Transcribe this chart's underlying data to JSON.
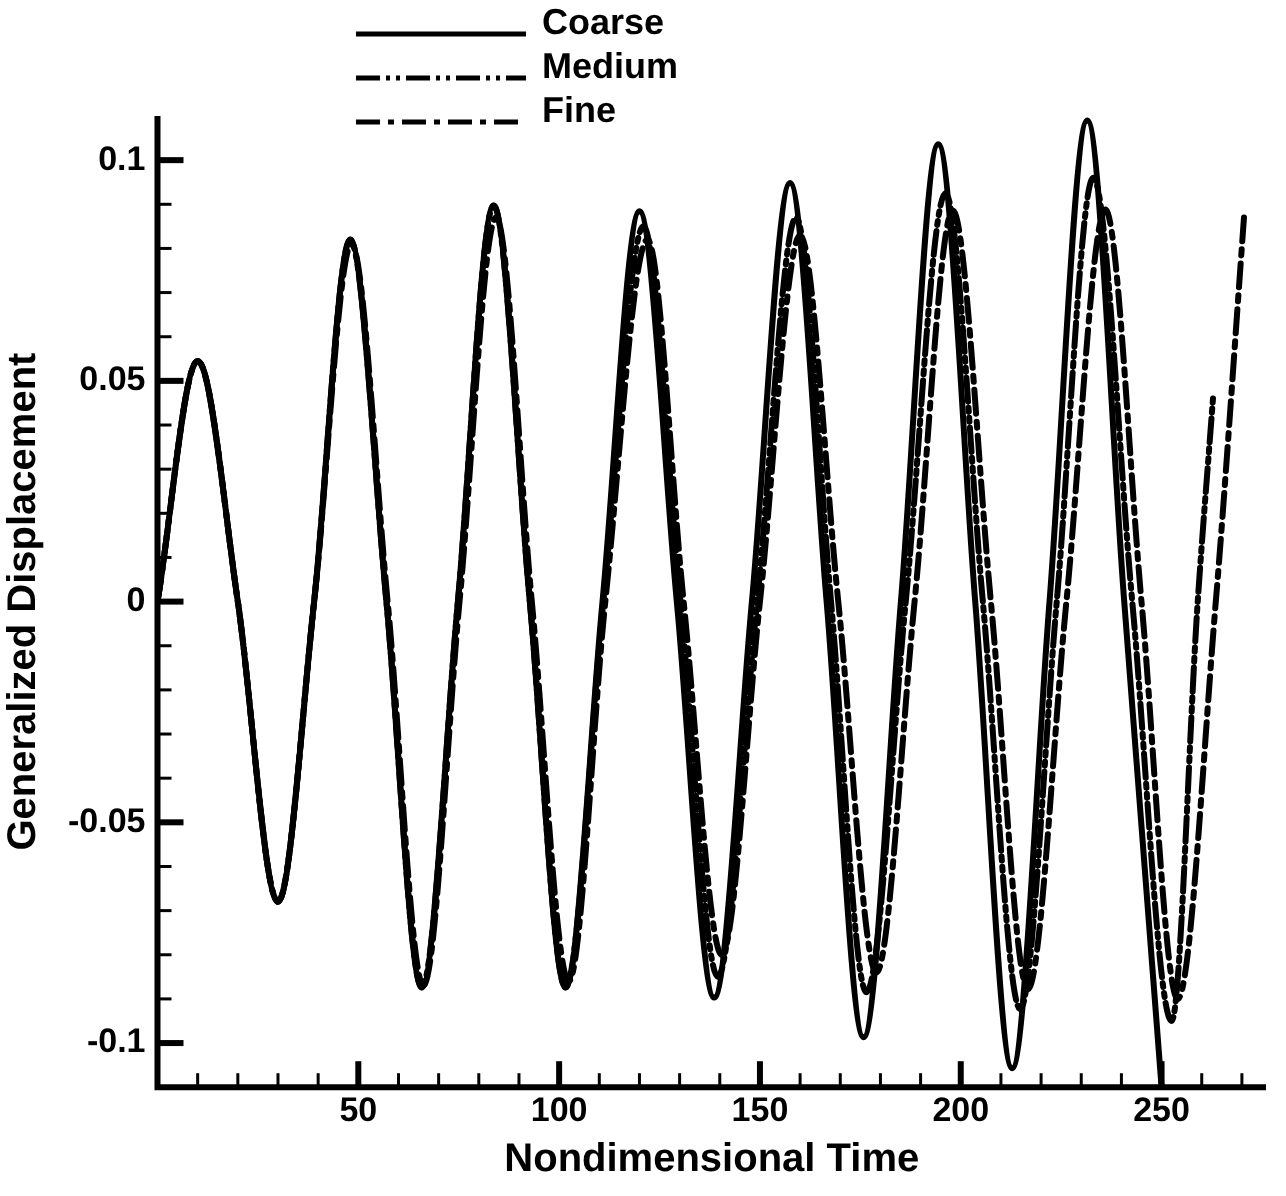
{
  "chart_data": {
    "type": "line",
    "xlabel": "Nondimensional Time",
    "ylabel": "Generalized Displacement",
    "xlim": [
      0,
      276
    ],
    "ylim": [
      -0.11,
      0.11
    ],
    "xticks": [
      {
        "value": 10,
        "label": null
      },
      {
        "value": 20,
        "label": null
      },
      {
        "value": 30,
        "label": null
      },
      {
        "value": 40,
        "label": null
      },
      50,
      {
        "value": 60,
        "label": null
      },
      {
        "value": 70,
        "label": null
      },
      {
        "value": 80,
        "label": null
      },
      {
        "value": 90,
        "label": null
      },
      100,
      {
        "value": 110,
        "label": null
      },
      {
        "value": 120,
        "label": null
      },
      {
        "value": 130,
        "label": null
      },
      {
        "value": 140,
        "label": null
      },
      150,
      {
        "value": 160,
        "label": null
      },
      {
        "value": 170,
        "label": null
      },
      {
        "value": 180,
        "label": null
      },
      {
        "value": 190,
        "label": null
      },
      200,
      {
        "value": 210,
        "label": null
      },
      {
        "value": 220,
        "label": null
      },
      {
        "value": 230,
        "label": null
      },
      {
        "value": 240,
        "label": null
      },
      250,
      {
        "value": 260,
        "label": null
      },
      {
        "value": 270,
        "label": null
      }
    ],
    "yticks": [
      -0.1,
      {
        "value": -0.09,
        "label": null
      },
      {
        "value": -0.08,
        "label": null
      },
      {
        "value": -0.07,
        "label": null
      },
      {
        "value": -0.06,
        "label": null
      },
      -0.05,
      {
        "value": -0.04,
        "label": null
      },
      {
        "value": -0.03,
        "label": null
      },
      {
        "value": -0.02,
        "label": null
      },
      {
        "value": -0.01,
        "label": null
      },
      0,
      {
        "value": 0.01,
        "label": null
      },
      {
        "value": 0.02,
        "label": null
      },
      {
        "value": 0.03,
        "label": null
      },
      {
        "value": 0.04,
        "label": null
      },
      0.05,
      {
        "value": 0.06,
        "label": null
      },
      {
        "value": 0.07,
        "label": null
      },
      {
        "value": 0.08,
        "label": null
      },
      {
        "value": 0.09,
        "label": null
      },
      0.1
    ],
    "grid": false,
    "legend": "top",
    "marker": "none",
    "series": [
      {
        "name": "Coarse",
        "color": "#000000",
        "line_style": "solid",
        "x": [
          0,
          10,
          20,
          30,
          39,
          48,
          57,
          65.8,
          74.8,
          83.7,
          92.7,
          101.6,
          110.8,
          120,
          129.3,
          138.6,
          148,
          157.5,
          166.6,
          175.8,
          185.1,
          194.4,
          203.6,
          212.8,
          222.1,
          231.5,
          240.7,
          250
        ],
        "values": [
          0,
          0.0545,
          0,
          -0.068,
          0,
          0.082,
          0,
          -0.0874,
          0,
          0.0897,
          0,
          -0.0874,
          0,
          0.0884,
          0,
          -0.0897,
          0,
          0.0948,
          0,
          -0.0987,
          0,
          0.1036,
          0,
          -0.1057,
          0,
          0.109,
          0,
          -0.11
        ]
      },
      {
        "name": "Medium",
        "color": "#000000",
        "line_style": "dashdotdot",
        "x": [
          0,
          10,
          20,
          30,
          39,
          48,
          57,
          65.8,
          74.8,
          83.7,
          92.7,
          101.6,
          111,
          121,
          130.2,
          139.5,
          149.3,
          159,
          167.7,
          176.5,
          186.3,
          196.2,
          205.5,
          214.8,
          223.9,
          233,
          242.7,
          252.5,
          259,
          262.8
        ],
        "values": [
          0,
          0.0545,
          0,
          -0.068,
          0,
          0.082,
          0,
          -0.0874,
          0,
          0.0897,
          0,
          -0.0874,
          0,
          0.085,
          0,
          -0.085,
          0,
          0.087,
          0,
          -0.0885,
          0,
          0.0925,
          0,
          -0.0923,
          0,
          0.096,
          0,
          -0.095,
          0,
          0.046
        ]
      },
      {
        "name": "Fine",
        "color": "#000000",
        "line_style": "dashdot",
        "x": [
          0,
          10,
          20,
          30,
          39,
          48.3,
          57.3,
          66.2,
          75.2,
          84.3,
          93.2,
          102.4,
          111.5,
          122,
          131,
          140.5,
          150,
          160,
          169.5,
          179,
          188.5,
          198,
          207.5,
          216.7,
          226.3,
          236,
          245,
          254,
          263.5,
          270.6
        ],
        "values": [
          0,
          0.0545,
          0,
          -0.068,
          0,
          0.081,
          0,
          -0.087,
          0,
          0.087,
          0,
          -0.086,
          0,
          0.082,
          0,
          -0.08,
          0,
          0.083,
          0,
          -0.084,
          0,
          0.0886,
          0,
          -0.0878,
          0,
          0.0888,
          0,
          -0.09,
          0,
          0.088
        ]
      }
    ]
  }
}
